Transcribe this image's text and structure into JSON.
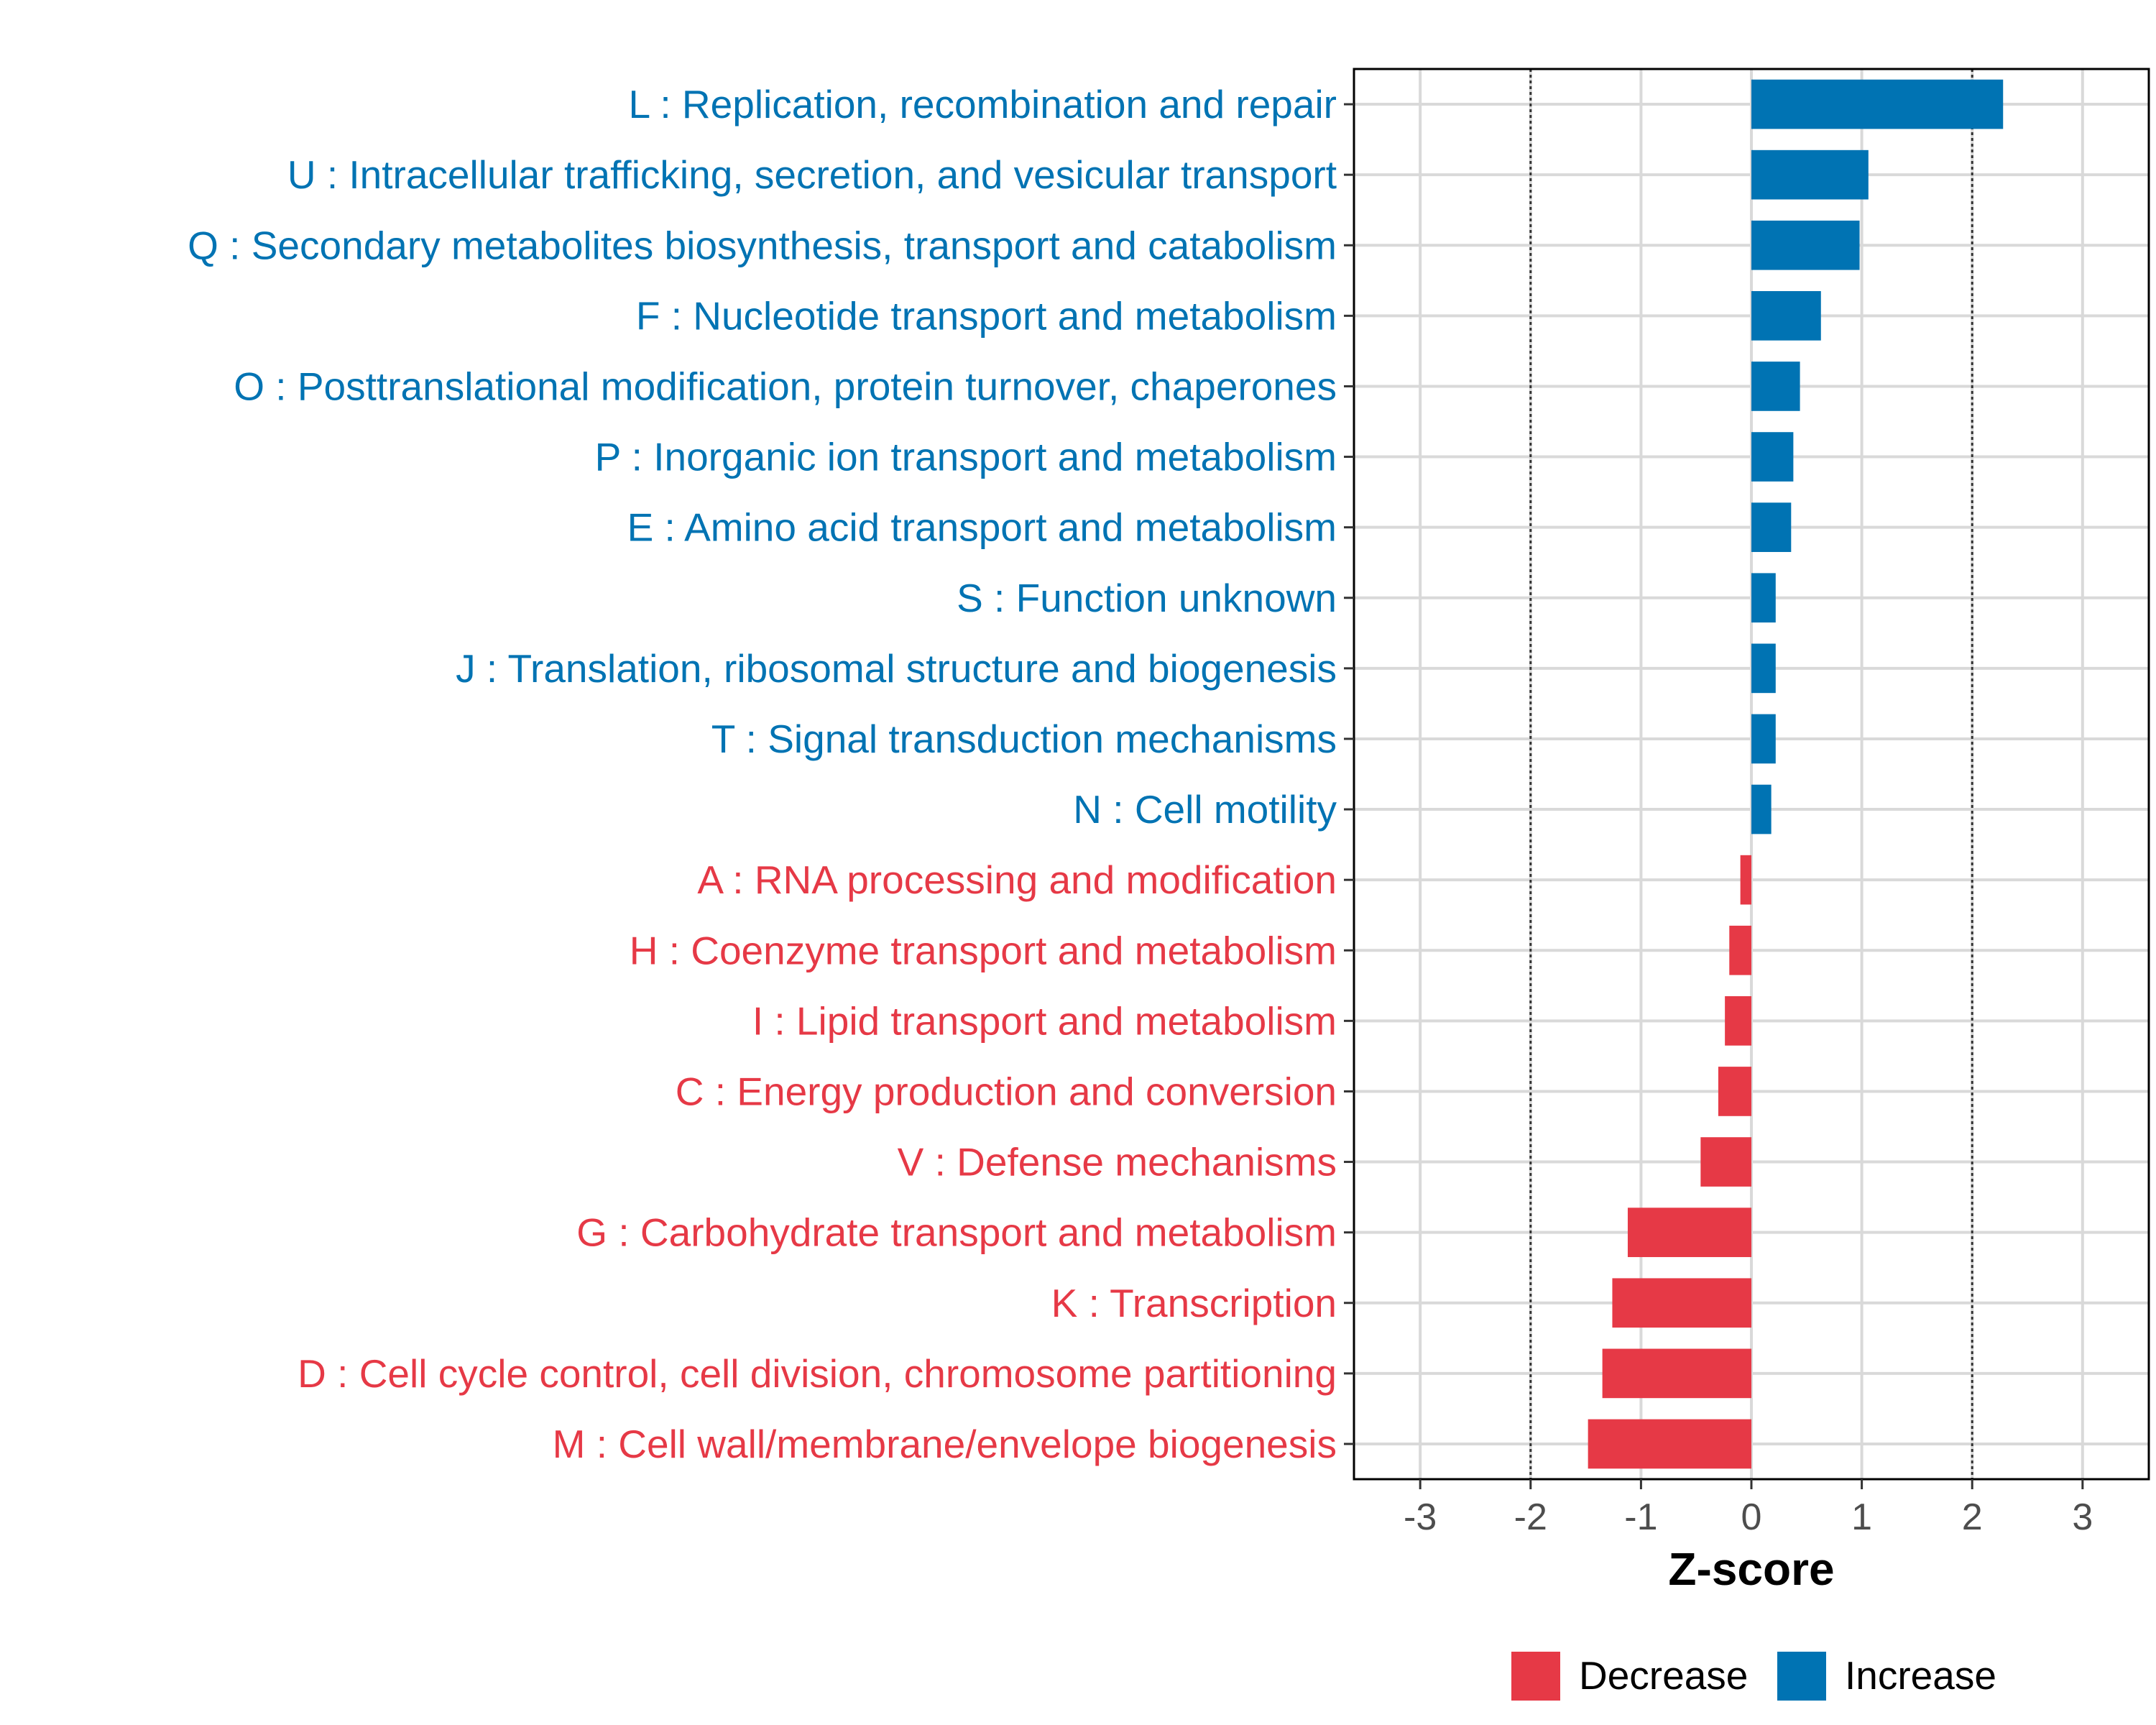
{
  "colors": {
    "increase": "#0073b3",
    "decrease": "#e63946"
  },
  "chart_data": {
    "type": "bar",
    "orientation": "horizontal",
    "xlabel": "Z-score",
    "xlim": [
      -3.6,
      3.6
    ],
    "xticks": [
      -3,
      -2,
      -1,
      0,
      1,
      2,
      3
    ],
    "xtick_labels": [
      "-3",
      "-2",
      "-1",
      "0",
      "1",
      "2",
      "3"
    ],
    "reference_lines": [
      -2,
      2
    ],
    "grid": true,
    "legend": {
      "position": "bottom",
      "entries": [
        {
          "name": "Decrease",
          "color_key": "decrease"
        },
        {
          "name": "Increase",
          "color_key": "increase"
        }
      ]
    },
    "categories": [
      {
        "label": "L : Replication, recombination and repair",
        "value": 2.28,
        "direction": "increase"
      },
      {
        "label": "U : Intracellular trafficking, secretion, and vesicular transport",
        "value": 1.06,
        "direction": "increase"
      },
      {
        "label": "Q : Secondary metabolites biosynthesis, transport and catabolism",
        "value": 0.98,
        "direction": "increase"
      },
      {
        "label": "F : Nucleotide transport and metabolism",
        "value": 0.63,
        "direction": "increase"
      },
      {
        "label": "O : Posttranslational modification, protein turnover, chaperones",
        "value": 0.44,
        "direction": "increase"
      },
      {
        "label": "P : Inorganic ion transport and metabolism",
        "value": 0.38,
        "direction": "increase"
      },
      {
        "label": "E : Amino acid transport and metabolism",
        "value": 0.36,
        "direction": "increase"
      },
      {
        "label": "S : Function unknown",
        "value": 0.22,
        "direction": "increase"
      },
      {
        "label": "J : Translation, ribosomal structure and biogenesis",
        "value": 0.22,
        "direction": "increase"
      },
      {
        "label": "T : Signal transduction mechanisms",
        "value": 0.22,
        "direction": "increase"
      },
      {
        "label": "N : Cell motility",
        "value": 0.18,
        "direction": "increase"
      },
      {
        "label": "A : RNA processing and modification",
        "value": -0.1,
        "direction": "decrease"
      },
      {
        "label": "H : Coenzyme transport and metabolism",
        "value": -0.2,
        "direction": "decrease"
      },
      {
        "label": "I : Lipid transport and metabolism",
        "value": -0.24,
        "direction": "decrease"
      },
      {
        "label": "C : Energy production and conversion",
        "value": -0.3,
        "direction": "decrease"
      },
      {
        "label": "V : Defense mechanisms",
        "value": -0.46,
        "direction": "decrease"
      },
      {
        "label": "G : Carbohydrate transport and metabolism",
        "value": -1.12,
        "direction": "decrease"
      },
      {
        "label": "K : Transcription",
        "value": -1.26,
        "direction": "decrease"
      },
      {
        "label": "D : Cell cycle control, cell division, chromosome partitioning",
        "value": -1.35,
        "direction": "decrease"
      },
      {
        "label": "M : Cell wall/membrane/envelope biogenesis",
        "value": -1.48,
        "direction": "decrease"
      }
    ]
  }
}
